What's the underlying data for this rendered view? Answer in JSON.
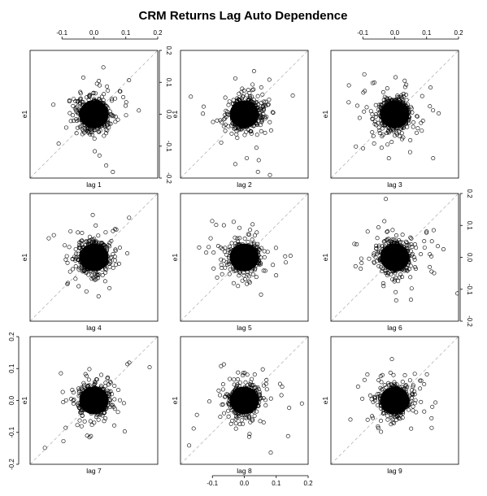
{
  "chart_data": {
    "type": "scatter",
    "title": "CRM Returns Lag Auto Dependence",
    "ylabel": "e1",
    "xlim": [
      -0.2,
      0.2
    ],
    "ylim": [
      -0.2,
      0.2
    ],
    "tick_values": [
      -0.2,
      -0.1,
      0.0,
      0.1,
      0.2
    ],
    "tick_labels": [
      "-0.2",
      "-0.1",
      "0.0",
      "0.1",
      "0.2"
    ],
    "grid": false,
    "reference_line": "y = x (dashed)",
    "panels": [
      {
        "label": "lag 1",
        "top_axis": true,
        "right_axis": true,
        "left_axis": false,
        "bottom_axis": false,
        "seed": 11
      },
      {
        "label": "lag 2",
        "top_axis": false,
        "right_axis": false,
        "left_axis": false,
        "bottom_axis": false,
        "seed": 23
      },
      {
        "label": "lag 3",
        "top_axis": true,
        "right_axis": false,
        "left_axis": false,
        "bottom_axis": false,
        "seed": 37
      },
      {
        "label": "lag 4",
        "top_axis": false,
        "right_axis": false,
        "left_axis": false,
        "bottom_axis": false,
        "seed": 41
      },
      {
        "label": "lag 5",
        "top_axis": false,
        "right_axis": false,
        "left_axis": false,
        "bottom_axis": false,
        "seed": 53
      },
      {
        "label": "lag 6",
        "top_axis": false,
        "right_axis": true,
        "left_axis": false,
        "bottom_axis": false,
        "seed": 67
      },
      {
        "label": "lag 7",
        "top_axis": false,
        "right_axis": false,
        "left_axis": true,
        "bottom_axis": false,
        "seed": 71
      },
      {
        "label": "lag 8",
        "top_axis": false,
        "right_axis": false,
        "left_axis": false,
        "bottom_axis": true,
        "seed": 83
      },
      {
        "label": "lag 9",
        "top_axis": false,
        "right_axis": false,
        "left_axis": false,
        "bottom_axis": false,
        "seed": 97
      }
    ]
  }
}
